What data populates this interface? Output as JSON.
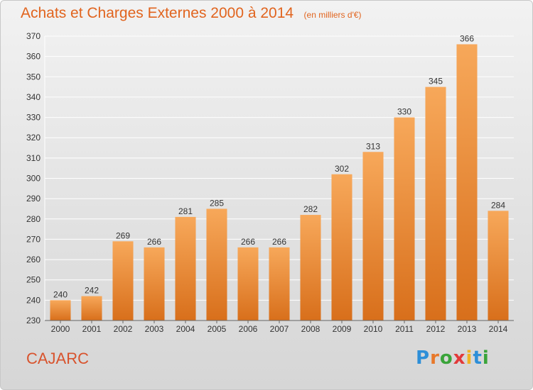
{
  "title": "Achats et Charges Externes 2000 à 2014",
  "subtitle": "(en milliers d'€)",
  "commune": "CAJARC",
  "brand": {
    "letters": [
      "P",
      "r",
      "o",
      "x",
      "i",
      "t",
      "i"
    ],
    "colors": [
      "#2e8fd8",
      "#e8782a",
      "#3aa43a",
      "#e23a3a",
      "#f0b323",
      "#2e8fd8",
      "#3aa43a"
    ]
  },
  "colors": {
    "title": "#e1641e",
    "bar_top": "#f7a85a",
    "bar_bottom": "#d86f1b",
    "grid": "#ffffff"
  },
  "chart_data": {
    "type": "bar",
    "categories": [
      "2000",
      "2001",
      "2002",
      "2003",
      "2004",
      "2005",
      "2006",
      "2007",
      "2008",
      "2009",
      "2010",
      "2011",
      "2012",
      "2013",
      "2014"
    ],
    "values": [
      240,
      242,
      269,
      266,
      281,
      285,
      266,
      266,
      282,
      302,
      313,
      330,
      345,
      366,
      284
    ],
    "ylim": [
      230,
      370
    ],
    "yticks": [
      230,
      240,
      250,
      260,
      270,
      280,
      290,
      300,
      310,
      320,
      330,
      340,
      350,
      360,
      370
    ],
    "grid": true
  }
}
